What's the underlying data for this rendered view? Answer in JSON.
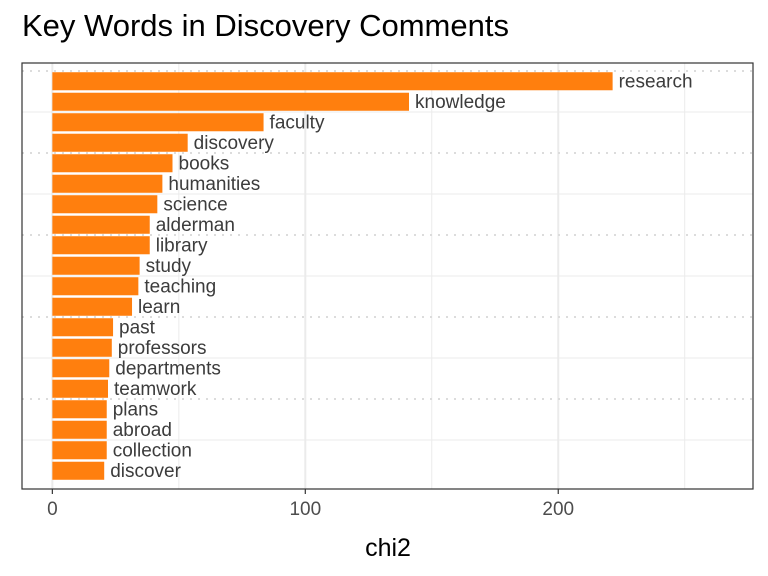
{
  "chart_data": {
    "type": "bar",
    "orientation": "horizontal",
    "title": "Key Words in Discovery Comments",
    "xlabel": "chi2",
    "ylabel": "",
    "xlim": [
      -12,
      277
    ],
    "xticks": [
      0,
      100,
      200
    ],
    "grid": true,
    "legend": "none",
    "bar_color": "#FF7F0E",
    "categories": [
      "research",
      "knowledge",
      "faculty",
      "discovery",
      "books",
      "humanities",
      "science",
      "alderman",
      "library",
      "study",
      "teaching",
      "learn",
      "past",
      "professors",
      "departments",
      "teamwork",
      "plans",
      "abroad",
      "collection",
      "discover"
    ],
    "values": [
      221.5,
      141,
      83.5,
      53.5,
      47.5,
      43.5,
      41.5,
      38.5,
      38.5,
      34.5,
      34,
      31.5,
      24,
      23.5,
      22.5,
      22,
      21.5,
      21.5,
      21.5,
      20.5
    ]
  }
}
